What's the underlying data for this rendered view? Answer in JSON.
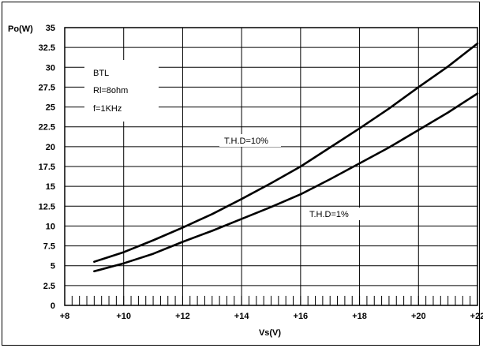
{
  "chart_data": {
    "type": "line",
    "title": "",
    "xlabel": "Vs(V)",
    "ylabel": "Po(W)",
    "xlim": [
      8,
      22
    ],
    "ylim": [
      0,
      35
    ],
    "x_ticks": [
      8,
      10,
      12,
      14,
      16,
      18,
      20,
      22
    ],
    "x_tick_labels": [
      "+8",
      "+10",
      "+12",
      "+14",
      "+16",
      "+18",
      "+20",
      "+22"
    ],
    "y_ticks": [
      0,
      2.5,
      5,
      7.5,
      10,
      12.5,
      15,
      17.5,
      20,
      22.5,
      25,
      27.5,
      30,
      32.5,
      35
    ],
    "y_tick_labels": [
      "0",
      "2.5",
      "5",
      "7.5",
      "10",
      "12.5",
      "15",
      "17.5",
      "20",
      "22.5",
      "25",
      "27.5",
      "30",
      "32.5",
      "35"
    ],
    "grid": true,
    "minor_x_tick_step": 0.25,
    "series": [
      {
        "name": "T.H.D=10%",
        "x": [
          9,
          10,
          11,
          12,
          13,
          14,
          15,
          16,
          17,
          18,
          19,
          20,
          21,
          22
        ],
        "y": [
          5.5,
          6.7,
          8.2,
          9.8,
          11.5,
          13.4,
          15.4,
          17.5,
          19.9,
          22.3,
          24.8,
          27.5,
          30.1,
          33.0
        ]
      },
      {
        "name": "T.H.D=1%",
        "x": [
          9,
          10,
          11,
          12,
          13,
          14,
          15,
          16,
          17,
          18,
          19,
          20,
          21,
          22
        ],
        "y": [
          4.3,
          5.3,
          6.5,
          8.0,
          9.4,
          10.9,
          12.4,
          14.0,
          15.9,
          17.9,
          19.9,
          22.1,
          24.3,
          26.7
        ]
      }
    ],
    "annotations": [
      "BTL",
      "Rl=8ohm",
      "f=1KHz",
      "T.H.D=10%",
      "T.H.D=1%"
    ]
  }
}
